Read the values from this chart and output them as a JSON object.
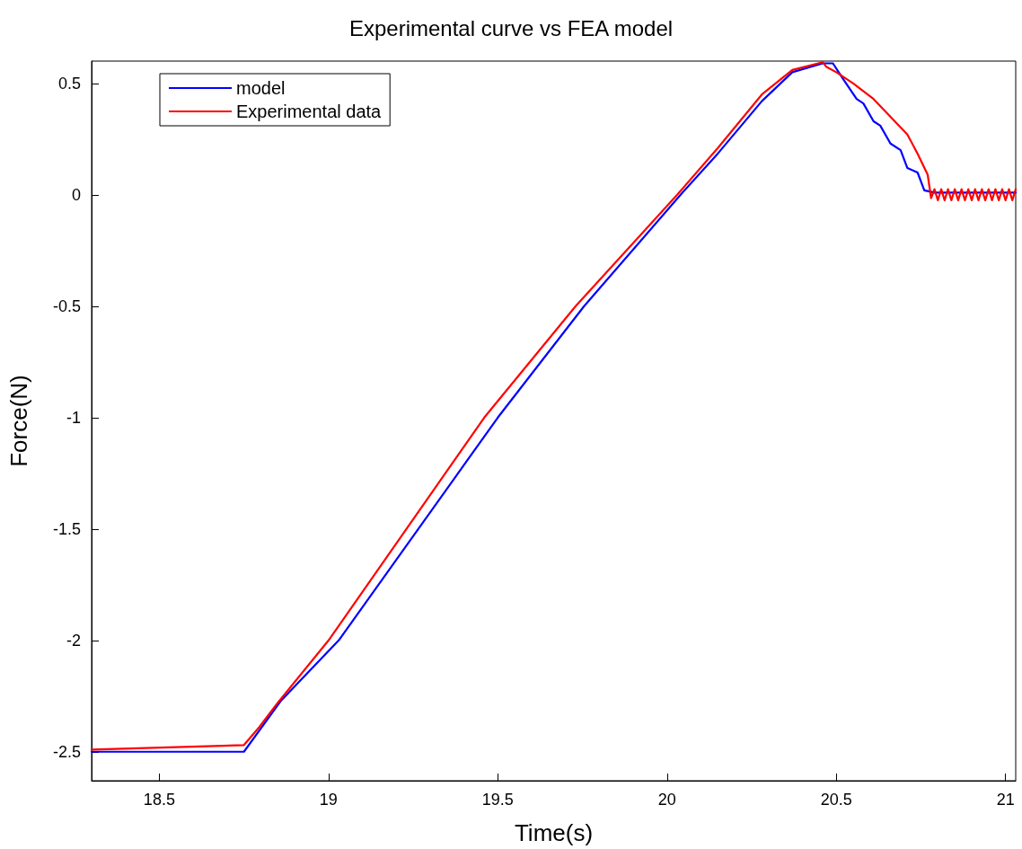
{
  "chart_data": {
    "type": "line",
    "title": "Experimental curve vs FEA model",
    "xlabel": "Time(s)",
    "ylabel": "Force(N)",
    "xlim": [
      18.3,
      21.03
    ],
    "ylim": [
      -2.63,
      0.6
    ],
    "xticks": [
      18.5,
      19,
      19.5,
      20,
      20.5,
      21
    ],
    "yticks": [
      -2.5,
      -2,
      -1.5,
      -1,
      -0.5,
      0,
      0.5
    ],
    "grid": false,
    "legend": "top left",
    "line_style": "solid",
    "marker": "none",
    "series": [
      {
        "name": "model",
        "color": "#0000ff",
        "x": [
          18.3,
          18.75,
          18.86,
          19.03,
          19.5,
          19.755,
          20.04,
          20.15,
          20.28,
          20.37,
          20.46,
          20.49,
          20.52,
          20.56,
          20.58,
          20.61,
          20.63,
          20.66,
          20.69,
          20.71,
          20.74,
          20.76,
          20.79,
          21.03
        ],
        "values": [
          -2.5,
          -2.5,
          -2.27,
          -2,
          -1,
          -0.5,
          0,
          0.185,
          0.42,
          0.55,
          0.59,
          0.59,
          0.52,
          0.43,
          0.41,
          0.33,
          0.31,
          0.23,
          0.2,
          0.12,
          0.1,
          0.02,
          0.01,
          0.01
        ]
      },
      {
        "name": "Experimental data",
        "color": "#ff0000",
        "x": [
          18.3,
          18.75,
          18.795,
          18.85,
          19.0,
          19.46,
          19.73,
          20.03,
          20.15,
          20.28,
          20.37,
          20.46,
          20.47,
          20.5,
          20.55,
          20.61,
          20.66,
          20.71,
          20.74,
          20.77,
          20.78,
          20.79,
          20.8,
          20.81,
          20.82,
          20.83,
          20.84,
          20.85,
          20.86,
          20.87,
          20.88,
          20.89,
          20.9,
          20.91,
          20.92,
          20.93,
          20.94,
          20.95,
          20.96,
          20.97,
          20.98,
          20.99,
          21.0,
          21.01,
          21.02,
          21.03
        ],
        "values": [
          -2.49,
          -2.47,
          -2.39,
          -2.28,
          -2,
          -1,
          -0.5,
          0,
          0.21,
          0.45,
          0.56,
          0.595,
          0.575,
          0.55,
          0.5,
          0.43,
          0.35,
          0.27,
          0.185,
          0.09,
          -0.015,
          0.025,
          -0.025,
          0.025,
          -0.025,
          0.025,
          -0.025,
          0.025,
          -0.025,
          0.025,
          -0.025,
          0.025,
          -0.025,
          0.025,
          -0.025,
          0.025,
          -0.025,
          0.025,
          -0.025,
          0.025,
          -0.025,
          0.025,
          -0.025,
          0.025,
          -0.025,
          0.025
        ]
      }
    ]
  }
}
